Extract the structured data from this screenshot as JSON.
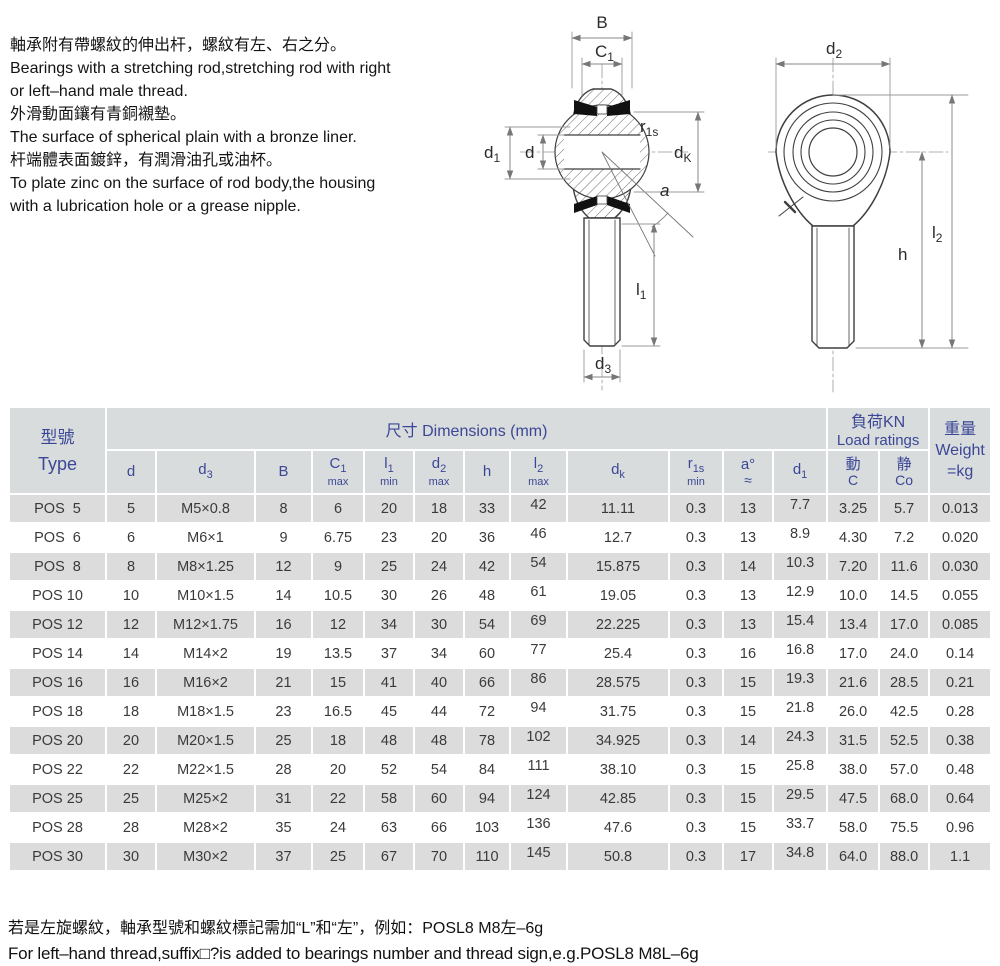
{
  "intro": {
    "lines": [
      "軸承附有帶螺紋的伸出杆，螺紋有左、右之分。",
      "Bearings with a stretching rod,stretching rod with right",
      "or left–hand male thread.",
      "外滑動面鑲有青銅襯墊。",
      "The surface of spherical plain with a bronze liner.",
      "杆端體表面鍍鋅，有潤滑油孔或油杯。",
      "To plate zinc on the surface of rod body,the housing",
      "with a lubrication hole or a grease nipple."
    ]
  },
  "diagrams": {
    "front_view": {
      "B": "B",
      "C1_base": "C",
      "C1_sub": "1",
      "d1_base": "d",
      "d1_sub": "1",
      "d": "d",
      "r1s_base": "r",
      "r1s_sub": "1s",
      "dk_base": "d",
      "dk_sub": "K",
      "a": "a",
      "l1_base": "l",
      "l1_sub": "1",
      "d3_base": "d",
      "d3_sub": "3"
    },
    "side_view": {
      "d2_base": "d",
      "d2_sub": "2",
      "h": "h",
      "l2_base": "l",
      "l2_sub": "2"
    }
  },
  "table": {
    "corner_zh": "型號",
    "corner_en": "Type",
    "dims_group": "尺寸 Dimensions  (mm)",
    "load_group_zh": "負荷KN",
    "load_group_en": "Load ratings",
    "weight_zh": "重量",
    "weight_en": "Weight",
    "weight_eq": "=kg",
    "columns": [
      {
        "base": "d"
      },
      {
        "base": "d",
        "sub": "3"
      },
      {
        "base": "B"
      },
      {
        "base": "C",
        "sub": "1",
        "note": "max",
        "small": true
      },
      {
        "base": "l",
        "sub": "1",
        "note": "min",
        "small": true
      },
      {
        "base": "d",
        "sub": "2",
        "note": "max",
        "small": true
      },
      {
        "base": "h"
      },
      {
        "base": "l",
        "sub": "2",
        "note": "max",
        "small": true
      },
      {
        "base": "d",
        "sub": "k"
      },
      {
        "base": "r",
        "sub": "1s",
        "note": "min",
        "small": true
      },
      {
        "base": "a°",
        "note": "≈"
      },
      {
        "base": "d",
        "sub": "1"
      },
      {
        "base": "動",
        "note": "C"
      },
      {
        "base": "静",
        "note": "Co"
      }
    ],
    "rows": [
      [
        "POS  5",
        "5",
        "M5×0.8",
        "8",
        "6",
        "20",
        "18",
        "33",
        "42",
        "11.11",
        "0.3",
        "13",
        "7.7",
        "3.25",
        "5.7",
        "0.013"
      ],
      [
        "POS  6",
        "6",
        "M6×1",
        "9",
        "6.75",
        "23",
        "20",
        "36",
        "46",
        "12.7",
        "0.3",
        "13",
        "8.9",
        "4.30",
        "7.2",
        "0.020"
      ],
      [
        "POS  8",
        "8",
        "M8×1.25",
        "12",
        "9",
        "25",
        "24",
        "42",
        "54",
        "15.875",
        "0.3",
        "14",
        "10.3",
        "7.20",
        "11.6",
        "0.030"
      ],
      [
        "POS 10",
        "10",
        "M10×1.5",
        "14",
        "10.5",
        "30",
        "26",
        "48",
        "61",
        "19.05",
        "0.3",
        "13",
        "12.9",
        "10.0",
        "14.5",
        "0.055"
      ],
      [
        "POS 12",
        "12",
        "M12×1.75",
        "16",
        "12",
        "34",
        "30",
        "54",
        "69",
        "22.225",
        "0.3",
        "13",
        "15.4",
        "13.4",
        "17.0",
        "0.085"
      ],
      [
        "POS 14",
        "14",
        "M14×2",
        "19",
        "13.5",
        "37",
        "34",
        "60",
        "77",
        "25.4",
        "0.3",
        "16",
        "16.8",
        "17.0",
        "24.0",
        "0.14"
      ],
      [
        "POS 16",
        "16",
        "M16×2",
        "21",
        "15",
        "41",
        "40",
        "66",
        "86",
        "28.575",
        "0.3",
        "15",
        "19.3",
        "21.6",
        "28.5",
        "0.21"
      ],
      [
        "POS 18",
        "18",
        "M18×1.5",
        "23",
        "16.5",
        "45",
        "44",
        "72",
        "94",
        "31.75",
        "0.3",
        "15",
        "21.8",
        "26.0",
        "42.5",
        "0.28"
      ],
      [
        "POS 20",
        "20",
        "M20×1.5",
        "25",
        "18",
        "48",
        "48",
        "78",
        "102",
        "34.925",
        "0.3",
        "14",
        "24.3",
        "31.5",
        "52.5",
        "0.38"
      ],
      [
        "POS 22",
        "22",
        "M22×1.5",
        "28",
        "20",
        "52",
        "54",
        "84",
        "111",
        "38.10",
        "0.3",
        "15",
        "25.8",
        "38.0",
        "57.0",
        "0.48"
      ],
      [
        "POS 25",
        "25",
        "M25×2",
        "31",
        "22",
        "58",
        "60",
        "94",
        "124",
        "42.85",
        "0.3",
        "15",
        "29.5",
        "47.5",
        "68.0",
        "0.64"
      ],
      [
        "POS 28",
        "28",
        "M28×2",
        "35",
        "24",
        "63",
        "66",
        "103",
        "136",
        "47.6",
        "0.3",
        "15",
        "33.7",
        "58.0",
        "75.5",
        "0.96"
      ],
      [
        "POS 30",
        "30",
        "M30×2",
        "37",
        "25",
        "67",
        "70",
        "110",
        "145",
        "50.8",
        "0.3",
        "17",
        "34.8",
        "64.0",
        "88.0",
        "1.1"
      ]
    ]
  },
  "footer": {
    "zh": "若是左旋螺紋，軸承型號和螺紋標記需加“L”和“左”，例如：POSL8  M8左–6g",
    "en": "For left–hand thread,suffix□?is added to bearings number and thread sign,e.g.POSL8  M8L–6g"
  },
  "colors": {
    "header_text": "#3b4796",
    "header_bg": "#d9dcdd",
    "row_gray": "#dcdcdc"
  }
}
